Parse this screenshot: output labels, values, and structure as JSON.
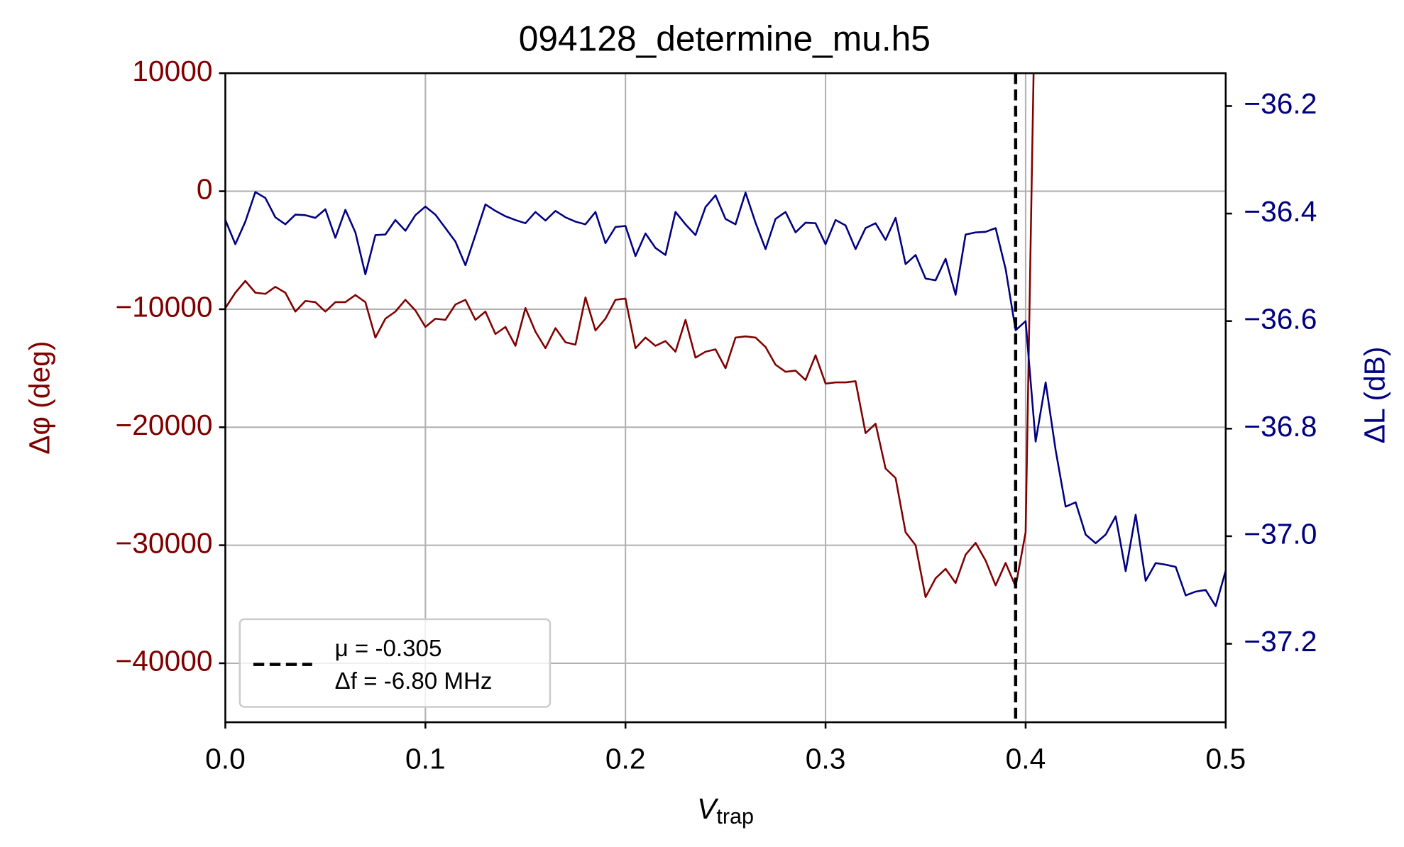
{
  "chart_data": {
    "type": "line",
    "title": "094128_determine_mu.h5",
    "xlabel": {
      "symbol": "V",
      "subscript": "trap"
    },
    "ylabel": "Δφ (deg)",
    "y2label": "ΔL (dB)",
    "xlim": [
      0,
      0.5
    ],
    "xticks": [
      {
        "value": 0,
        "label": "0.0"
      },
      0.1,
      0.2,
      0.3,
      0.4,
      0.5
    ],
    "ylim": [
      -45000,
      10000
    ],
    "yticks": [
      {
        "value": -40000,
        "label": "−40000"
      },
      {
        "value": -30000,
        "label": "−30000"
      },
      {
        "value": -20000,
        "label": "−20000"
      },
      {
        "value": -10000,
        "label": "−10000"
      },
      0,
      10000
    ],
    "y2lim": [
      -37.346,
      -36.139
    ],
    "y2ticks": [
      {
        "value": -37.2,
        "label": "−37.2"
      },
      {
        "value": -37.0,
        "label": "−37.0"
      },
      {
        "value": -36.8,
        "label": "−36.8"
      },
      {
        "value": -36.6,
        "label": "−36.6"
      },
      {
        "value": -36.4,
        "label": "−36.4"
      },
      {
        "value": -36.2,
        "label": "−36.2"
      }
    ],
    "grid": true,
    "legend_position": "lower left",
    "ycolor": "#800000",
    "y2color": "#000080",
    "vline": 0.395,
    "vline_color": "#000000",
    "legend": [
      "μ = -0.305",
      "Δf = -6.80 MHz"
    ],
    "x": [
      0,
      0.005,
      0.01,
      0.015,
      0.02,
      0.025,
      0.03,
      0.035,
      0.04,
      0.045,
      0.05,
      0.055,
      0.06,
      0.065,
      0.07,
      0.075,
      0.08,
      0.085,
      0.09,
      0.095,
      0.1,
      0.105,
      0.11,
      0.115,
      0.12,
      0.125,
      0.13,
      0.135,
      0.14,
      0.145,
      0.15,
      0.155,
      0.16,
      0.165,
      0.17,
      0.175,
      0.18,
      0.185,
      0.19,
      0.195,
      0.2,
      0.205,
      0.21,
      0.215,
      0.22,
      0.225,
      0.23,
      0.235,
      0.24,
      0.245,
      0.25,
      0.255,
      0.26,
      0.265,
      0.27,
      0.275,
      0.28,
      0.285,
      0.29,
      0.295,
      0.3,
      0.305,
      0.31,
      0.315,
      0.32,
      0.325,
      0.33,
      0.335,
      0.34,
      0.345,
      0.35,
      0.355,
      0.36,
      0.365,
      0.37,
      0.375,
      0.38,
      0.385,
      0.39,
      0.395,
      0.4,
      0.405,
      0.41,
      0.415,
      0.42,
      0.425,
      0.43,
      0.435,
      0.44,
      0.445,
      0.45,
      0.455,
      0.46,
      0.465,
      0.47,
      0.475,
      0.48,
      0.485,
      0.49,
      0.495,
      0.5
    ],
    "series": [
      {
        "color": "#800000",
        "axis": "y",
        "values": [
          -9900,
          -8600,
          -7600,
          -8600,
          -8700,
          -8100,
          -8600,
          -10200,
          -9300,
          -9400,
          -10200,
          -9400,
          -9400,
          -8800,
          -9400,
          -12400,
          -10800,
          -10200,
          -9200,
          -10100,
          -11500,
          -10800,
          -10900,
          -9600,
          -9200,
          -10900,
          -10200,
          -12100,
          -11500,
          -13100,
          -9900,
          -11900,
          -13300,
          -11600,
          -12800,
          -13000,
          -9000,
          -11800,
          -10800,
          -9200,
          -9100,
          -13300,
          -12400,
          -13100,
          -12700,
          -13600,
          -10900,
          -14100,
          -13600,
          -13400,
          -15000,
          -12400,
          -12300,
          -12400,
          -13200,
          -14700,
          -15300,
          -15200,
          -16000,
          -13900,
          -16300,
          -16200,
          -16200,
          -16100,
          -20500,
          -19700,
          -23500,
          -24300,
          -28900,
          -30000,
          -34400,
          -32800,
          -32000,
          -33200,
          -30800,
          -29800,
          -31300,
          -33400,
          -31500,
          -33500,
          -28900,
          20000,
          null,
          null,
          null,
          null,
          null,
          null,
          null,
          null,
          null,
          null,
          null,
          null,
          null,
          null,
          null,
          null,
          null,
          null,
          null
        ]
      },
      {
        "color": "#000080",
        "axis": "y2",
        "values": [
          -36.412,
          -36.457,
          -36.415,
          -36.36,
          -36.371,
          -36.407,
          -36.42,
          -36.402,
          -36.403,
          -36.408,
          -36.392,
          -36.445,
          -36.393,
          -36.435,
          -36.513,
          -36.44,
          -36.439,
          -36.412,
          -36.432,
          -36.403,
          -36.387,
          -36.402,
          -36.427,
          -36.452,
          -36.496,
          -36.44,
          -36.383,
          -36.395,
          -36.405,
          -36.412,
          -36.418,
          -36.397,
          -36.413,
          -36.395,
          -36.407,
          -36.415,
          -36.42,
          -36.397,
          -36.455,
          -36.425,
          -36.423,
          -36.479,
          -36.437,
          -36.464,
          -36.477,
          -36.397,
          -36.42,
          -36.44,
          -36.388,
          -36.366,
          -36.41,
          -36.42,
          -36.361,
          -36.417,
          -36.466,
          -36.41,
          -36.397,
          -36.435,
          -36.417,
          -36.418,
          -36.457,
          -36.412,
          -36.422,
          -36.466,
          -36.427,
          -36.418,
          -36.449,
          -36.408,
          -36.494,
          -36.477,
          -36.521,
          -36.524,
          -36.484,
          -36.551,
          -36.439,
          -36.435,
          -36.434,
          -36.427,
          -36.503,
          -36.617,
          -36.6,
          -36.824,
          -36.714,
          -36.84,
          -36.945,
          -36.937,
          -36.997,
          -37.013,
          -36.997,
          -36.963,
          -37.065,
          -36.96,
          -37.083,
          -37.05,
          -37.053,
          -37.057,
          -37.11,
          -37.103,
          -37.1,
          -37.13,
          -37.064
        ]
      }
    ]
  }
}
